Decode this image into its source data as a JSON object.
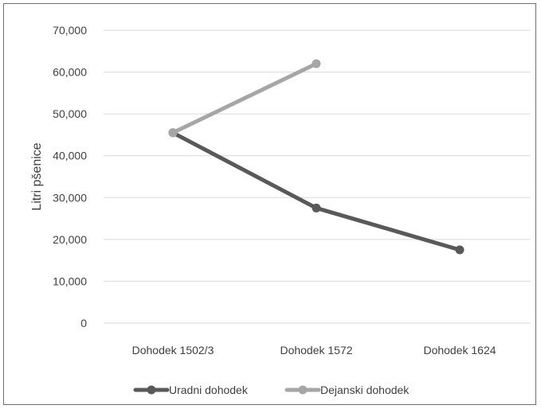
{
  "chart_data": {
    "type": "line",
    "title": "",
    "xlabel": "",
    "ylabel": "Litri pšenice",
    "categories": [
      "Dohodek 1502/3",
      "Dohodek 1572",
      "Dohodek 1624"
    ],
    "yticks": [
      "0",
      "10,000",
      "20,000",
      "30,000",
      "40,000",
      "50,000",
      "60,000",
      "70,000"
    ],
    "ytick_values": [
      0,
      10000,
      20000,
      30000,
      40000,
      50000,
      60000,
      70000
    ],
    "ylim": [
      0,
      70000
    ],
    "grid": true,
    "legend_position": "bottom",
    "series": [
      {
        "name": "Uradni dohodek",
        "color": "#595959",
        "values": [
          45500,
          27500,
          17500
        ]
      },
      {
        "name": "Dejanski dohodek",
        "color": "#a6a6a6",
        "values": [
          45500,
          62000,
          null
        ]
      }
    ]
  }
}
